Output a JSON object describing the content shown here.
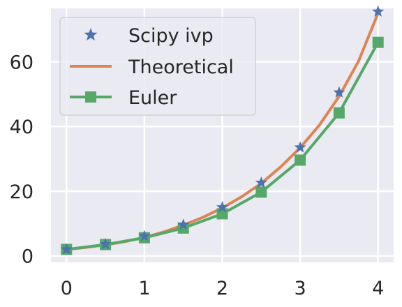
{
  "chart_data": {
    "type": "line",
    "title": "",
    "xlabel": "",
    "ylabel": "",
    "xlim": [
      -0.2,
      4.2
    ],
    "ylim": [
      -2,
      76.5
    ],
    "xticks": [
      0,
      1,
      2,
      3,
      4
    ],
    "yticks": [
      0,
      20,
      40,
      60
    ],
    "grid": true,
    "legend_placement": "top-left",
    "series": [
      {
        "name": "Scipy ivp",
        "style": "star-markers",
        "color": "#4c72b0",
        "x": [
          0,
          0.5,
          1,
          1.5,
          2,
          2.5,
          3,
          3.5,
          4
        ],
        "y": [
          2,
          3.6,
          6.1,
          9.6,
          15.0,
          22.6,
          33.5,
          50.5,
          75.5
        ]
      },
      {
        "name": "Theoretical",
        "style": "line",
        "color": "#dd8452",
        "x": [
          0,
          0.25,
          0.5,
          0.75,
          1,
          1.25,
          1.5,
          1.75,
          2,
          2.25,
          2.5,
          2.75,
          3,
          3.25,
          3.5,
          3.75,
          4
        ],
        "y": [
          2.0,
          2.6,
          3.4,
          4.4,
          5.7,
          7.4,
          9.5,
          11.9,
          14.8,
          18.3,
          22.4,
          27.5,
          33.4,
          40.5,
          49.3,
          60.2,
          75.0
        ]
      },
      {
        "name": "Euler",
        "style": "line-square-markers",
        "color": "#55a868",
        "x": [
          0,
          0.5,
          1,
          1.5,
          2,
          2.5,
          3,
          3.5,
          4
        ],
        "y": [
          2,
          3.5,
          5.6,
          8.6,
          13.0,
          19.7,
          29.6,
          44.2,
          66.0
        ]
      }
    ]
  }
}
